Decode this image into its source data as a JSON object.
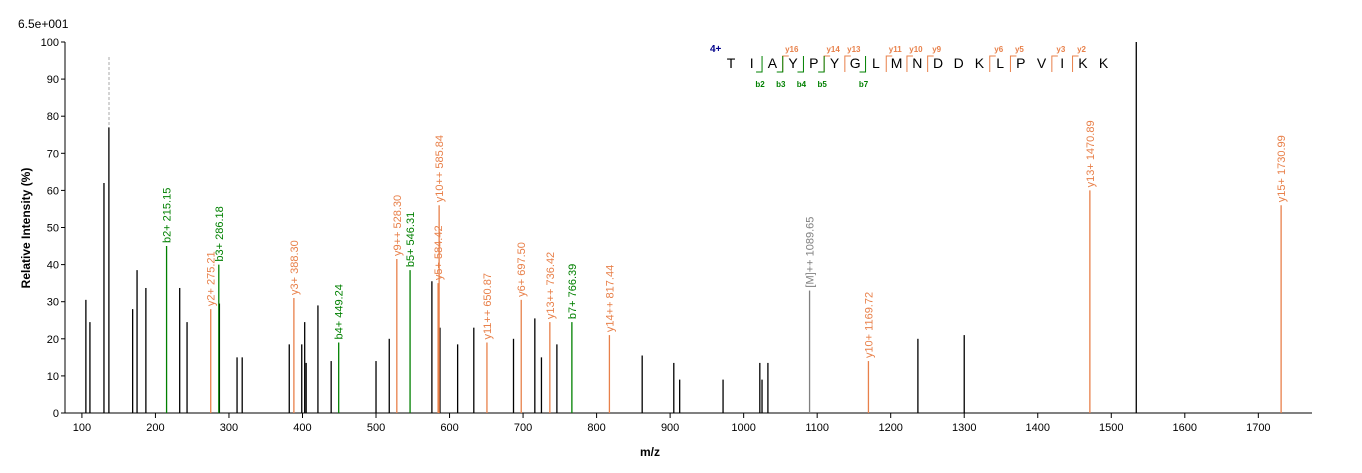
{
  "chart_data": {
    "type": "stem",
    "scale_label": "6.5e+001",
    "xlabel": "m/z",
    "ylabel": "Relative Intensity (%)",
    "xlim": [
      77,
      1773
    ],
    "ylim": [
      0,
      100
    ],
    "xticks": [
      100,
      200,
      300,
      400,
      500,
      600,
      700,
      800,
      900,
      1000,
      1100,
      1200,
      1300,
      1400,
      1500,
      1600,
      1700
    ],
    "yticks": [
      0,
      10,
      20,
      30,
      40,
      50,
      60,
      70,
      80,
      90,
      100
    ],
    "series": [
      {
        "color": "#000000",
        "x": [
          105.4,
          110.9,
          130,
          136.7,
          169,
          175,
          187,
          233,
          243,
          287,
          311,
          318,
          382,
          399,
          403,
          405,
          421,
          439,
          500,
          518,
          576,
          587,
          611,
          633,
          687,
          716,
          725,
          746,
          862,
          905,
          913,
          972,
          1022,
          1025,
          1033,
          1237,
          1300,
          1534
        ],
        "values": [
          30.5,
          24.5,
          62,
          77,
          28,
          38.5,
          33.7,
          33.7,
          24.5,
          29.5,
          15,
          15,
          18.5,
          18.5,
          24.5,
          13.5,
          29,
          14,
          14,
          20,
          35.5,
          23,
          18.5,
          23,
          20,
          25.5,
          15,
          18.5,
          15.5,
          13.5,
          9,
          9,
          13.5,
          9,
          13.5,
          20,
          21,
          100
        ]
      },
      {
        "color": "#008000",
        "x": [
          215.15,
          286.18,
          449.24,
          546.31,
          766.39
        ],
        "values": [
          45,
          40,
          19,
          38.5,
          24.5
        ],
        "labels": [
          "b2+ 215.15",
          "b3+ 286.18",
          "b4+ 449.24",
          "b5+ 546.31",
          "b7+ 766.39"
        ]
      },
      {
        "color": "#e8804a",
        "x": [
          275.21,
          388.3,
          528.3,
          585.84,
          584.42,
          650.87,
          697.5,
          736.42,
          817.44,
          1169.72,
          1470.89,
          1730.99
        ],
        "values": [
          28,
          31,
          41.5,
          56,
          35,
          19,
          30.5,
          24.5,
          21,
          14,
          60,
          56
        ],
        "labels": [
          "y2+ 275.21",
          "y3+ 388.30",
          "y9++ 528.30",
          "y10++ 585.84",
          "y5+ 584.42",
          "y11++ 650.87",
          "y6+ 697.50",
          "y13++ 736.42",
          "y14++ 817.44",
          "y10+ 1169.72",
          "y13+ 1470.89",
          "y15+ 1730.99"
        ]
      },
      {
        "color": "#808080",
        "x": [
          1089.65
        ],
        "values": [
          33
        ],
        "labels": [
          "[M]++ 1089.65"
        ]
      }
    ],
    "peptide": {
      "charge": "4+",
      "residues": [
        "T",
        "I",
        "A",
        "Y",
        "P",
        "Y",
        "G",
        "L",
        "M",
        "N",
        "D",
        "D",
        "K",
        "L",
        "P",
        "V",
        "I",
        "K",
        "K"
      ],
      "y_ions": [
        "y16",
        "y14",
        "y13",
        "y11",
        "y10",
        "y9",
        "y6",
        "y5",
        "y3",
        "y2"
      ],
      "b_ions": [
        "b2",
        "b3",
        "b4",
        "b5",
        "b7"
      ]
    }
  }
}
